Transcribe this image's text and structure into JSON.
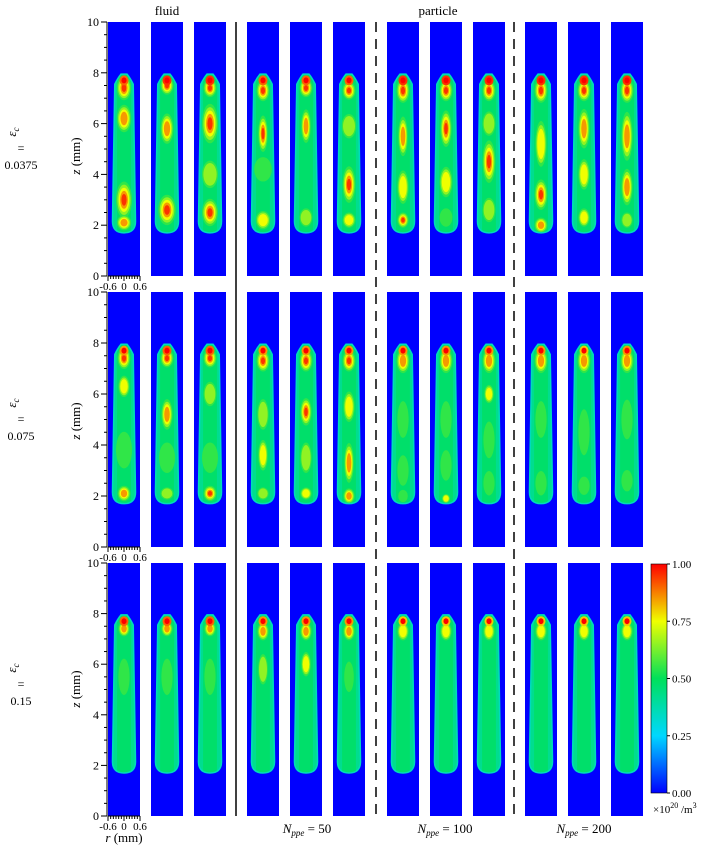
{
  "chart_data": {
    "type": "heatmap",
    "headers": {
      "fluid": "fluid",
      "particle": "particle"
    },
    "group_labels": [
      {
        "label": "N",
        "sub": "ppe",
        "value": "= 50"
      },
      {
        "label": "N",
        "sub": "ppe",
        "value": "= 100"
      },
      {
        "label": "N",
        "sub": "ppe",
        "value": "= 200"
      }
    ],
    "rows": [
      {
        "symbol": "ε",
        "sub": "c",
        "eq": "=",
        "value": "0.0375"
      },
      {
        "symbol": "ε",
        "sub": "c",
        "eq": "=",
        "value": "0.075"
      },
      {
        "symbol": "ε",
        "sub": "c",
        "eq": "=",
        "value": "0.15"
      }
    ],
    "ylabel": {
      "var": "z",
      "unit": "(mm)"
    },
    "xlabel": {
      "var": "r",
      "unit": "(mm)"
    },
    "yticks": [
      "0",
      "2",
      "4",
      "6",
      "8",
      "10"
    ],
    "xticks": [
      "-0.6",
      "0",
      "0.6"
    ],
    "ylim": [
      0,
      10
    ],
    "xlim": [
      -0.6,
      0.6
    ],
    "colorbar": {
      "ticks": [
        "1.00",
        "0.75",
        "0.50",
        "0.25",
        "0.00"
      ],
      "range": [
        0,
        1
      ],
      "unit_prefix": "×10",
      "unit_exp": "20",
      "unit_suffix": " /m",
      "unit_sup": "3"
    },
    "colors": {
      "low": "#0000ff",
      "cyan": "#00d8ff",
      "mid": "#00e05a",
      "yellow": "#f0ff00",
      "high": "#ff0000"
    },
    "panels": [
      [
        {
          "tip": 0.9,
          "peaks": [
            {
              "z": 7.4,
              "v": 1.0,
              "w": 0.45,
              "h": 0.8
            },
            {
              "z": 6.2,
              "v": 0.92,
              "w": 0.45,
              "h": 0.9
            },
            {
              "z": 4.5,
              "v": 0.52,
              "w": 0.6,
              "h": 0.9
            },
            {
              "z": 3.0,
              "v": 1.0,
              "w": 0.5,
              "h": 1.2
            },
            {
              "z": 2.1,
              "v": 0.85,
              "w": 0.45,
              "h": 0.5
            }
          ]
        },
        {
          "tip": 0.95,
          "peaks": [
            {
              "z": 7.5,
              "v": 1.0,
              "w": 0.4,
              "h": 0.6
            },
            {
              "z": 5.8,
              "v": 0.88,
              "w": 0.4,
              "h": 1.0
            },
            {
              "z": 4.2,
              "v": 0.5,
              "w": 0.55,
              "h": 0.8
            },
            {
              "z": 2.6,
              "v": 1.0,
              "w": 0.55,
              "h": 1.0
            }
          ]
        },
        {
          "tip": 0.95,
          "peaks": [
            {
              "z": 7.4,
              "v": 1.0,
              "w": 0.4,
              "h": 0.6
            },
            {
              "z": 6.0,
              "v": 0.95,
              "w": 0.5,
              "h": 1.3
            },
            {
              "z": 4.0,
              "v": 0.7,
              "w": 0.5,
              "h": 0.9
            },
            {
              "z": 2.5,
              "v": 1.0,
              "w": 0.5,
              "h": 0.9
            }
          ]
        },
        {
          "tip": 0.9,
          "peaks": [
            {
              "z": 7.3,
              "v": 1.0,
              "w": 0.4,
              "h": 0.7
            },
            {
              "z": 5.6,
              "v": 0.95,
              "w": 0.3,
              "h": 1.2
            },
            {
              "z": 4.2,
              "v": 0.55,
              "w": 0.55,
              "h": 0.8
            },
            {
              "z": 2.2,
              "v": 0.75,
              "w": 0.45,
              "h": 0.6
            }
          ]
        },
        {
          "tip": 0.9,
          "peaks": [
            {
              "z": 7.4,
              "v": 1.0,
              "w": 0.4,
              "h": 0.6
            },
            {
              "z": 5.9,
              "v": 0.9,
              "w": 0.3,
              "h": 1.1
            },
            {
              "z": 4.3,
              "v": 0.5,
              "w": 0.55,
              "h": 0.8
            },
            {
              "z": 2.3,
              "v": 0.7,
              "w": 0.4,
              "h": 0.6
            }
          ]
        },
        {
          "tip": 0.9,
          "peaks": [
            {
              "z": 7.3,
              "v": 1.0,
              "w": 0.4,
              "h": 0.6
            },
            {
              "z": 5.9,
              "v": 0.7,
              "w": 0.45,
              "h": 0.8
            },
            {
              "z": 3.6,
              "v": 0.95,
              "w": 0.4,
              "h": 1.2
            },
            {
              "z": 2.2,
              "v": 0.75,
              "w": 0.4,
              "h": 0.5
            }
          ]
        },
        {
          "tip": 0.95,
          "peaks": [
            {
              "z": 7.3,
              "v": 1.0,
              "w": 0.4,
              "h": 0.8
            },
            {
              "z": 5.5,
              "v": 0.85,
              "w": 0.3,
              "h": 1.3
            },
            {
              "z": 3.5,
              "v": 0.8,
              "w": 0.35,
              "h": 1.1
            },
            {
              "z": 2.2,
              "v": 0.95,
              "w": 0.35,
              "h": 0.5
            }
          ]
        },
        {
          "tip": 0.95,
          "peaks": [
            {
              "z": 7.3,
              "v": 1.0,
              "w": 0.4,
              "h": 0.7
            },
            {
              "z": 5.8,
              "v": 0.95,
              "w": 0.35,
              "h": 1.2
            },
            {
              "z": 3.7,
              "v": 0.75,
              "w": 0.4,
              "h": 1.0
            },
            {
              "z": 2.3,
              "v": 0.6,
              "w": 0.4,
              "h": 0.6
            }
          ]
        },
        {
          "tip": 0.95,
          "peaks": [
            {
              "z": 7.3,
              "v": 1.0,
              "w": 0.4,
              "h": 0.7
            },
            {
              "z": 6.0,
              "v": 0.7,
              "w": 0.4,
              "h": 0.8
            },
            {
              "z": 4.5,
              "v": 0.98,
              "w": 0.4,
              "h": 1.4
            },
            {
              "z": 2.6,
              "v": 0.7,
              "w": 0.4,
              "h": 0.8
            }
          ]
        },
        {
          "tip": 0.95,
          "peaks": [
            {
              "z": 7.3,
              "v": 1.0,
              "w": 0.4,
              "h": 0.8
            },
            {
              "z": 5.2,
              "v": 0.8,
              "w": 0.35,
              "h": 1.5
            },
            {
              "z": 3.2,
              "v": 0.95,
              "w": 0.4,
              "h": 1.0
            },
            {
              "z": 2.0,
              "v": 0.85,
              "w": 0.4,
              "h": 0.5
            }
          ]
        },
        {
          "tip": 0.95,
          "peaks": [
            {
              "z": 7.3,
              "v": 1.0,
              "w": 0.4,
              "h": 0.7
            },
            {
              "z": 5.8,
              "v": 0.9,
              "w": 0.35,
              "h": 1.3
            },
            {
              "z": 4.0,
              "v": 0.8,
              "w": 0.35,
              "h": 1.0
            },
            {
              "z": 2.3,
              "v": 0.75,
              "w": 0.35,
              "h": 0.6
            }
          ]
        },
        {
          "tip": 0.95,
          "peaks": [
            {
              "z": 7.3,
              "v": 1.0,
              "w": 0.4,
              "h": 0.8
            },
            {
              "z": 5.5,
              "v": 0.88,
              "w": 0.35,
              "h": 1.6
            },
            {
              "z": 3.5,
              "v": 0.85,
              "w": 0.35,
              "h": 1.2
            },
            {
              "z": 2.2,
              "v": 0.65,
              "w": 0.35,
              "h": 0.5
            }
          ]
        }
      ],
      [
        {
          "tip": 0.85,
          "peaks": [
            {
              "z": 7.4,
              "v": 0.95,
              "w": 0.4,
              "h": 0.7
            },
            {
              "z": 6.3,
              "v": 0.75,
              "w": 0.35,
              "h": 0.7
            },
            {
              "z": 3.8,
              "v": 0.55,
              "w": 0.5,
              "h": 1.2
            },
            {
              "z": 2.1,
              "v": 0.9,
              "w": 0.4,
              "h": 0.5
            }
          ]
        },
        {
          "tip": 0.9,
          "peaks": [
            {
              "z": 7.4,
              "v": 1.0,
              "w": 0.4,
              "h": 0.6
            },
            {
              "z": 5.2,
              "v": 0.85,
              "w": 0.35,
              "h": 1.0
            },
            {
              "z": 3.5,
              "v": 0.55,
              "w": 0.5,
              "h": 1.0
            },
            {
              "z": 2.1,
              "v": 0.7,
              "w": 0.4,
              "h": 0.4
            }
          ]
        },
        {
          "tip": 0.9,
          "peaks": [
            {
              "z": 7.4,
              "v": 1.0,
              "w": 0.4,
              "h": 0.6
            },
            {
              "z": 6.0,
              "v": 0.7,
              "w": 0.4,
              "h": 0.8
            },
            {
              "z": 3.5,
              "v": 0.55,
              "w": 0.5,
              "h": 1.0
            },
            {
              "z": 2.1,
              "v": 0.95,
              "w": 0.4,
              "h": 0.5
            }
          ]
        },
        {
          "tip": 0.85,
          "peaks": [
            {
              "z": 7.3,
              "v": 0.95,
              "w": 0.4,
              "h": 0.7
            },
            {
              "z": 5.2,
              "v": 0.7,
              "w": 0.35,
              "h": 1.0
            },
            {
              "z": 3.6,
              "v": 0.75,
              "w": 0.3,
              "h": 1.0
            },
            {
              "z": 2.1,
              "v": 0.7,
              "w": 0.35,
              "h": 0.4
            }
          ]
        },
        {
          "tip": 0.85,
          "peaks": [
            {
              "z": 7.3,
              "v": 1.0,
              "w": 0.4,
              "h": 0.7
            },
            {
              "z": 5.3,
              "v": 0.95,
              "w": 0.35,
              "h": 0.9
            },
            {
              "z": 3.5,
              "v": 0.7,
              "w": 0.35,
              "h": 1.0
            },
            {
              "z": 2.1,
              "v": 0.75,
              "w": 0.35,
              "h": 0.4
            }
          ]
        },
        {
          "tip": 0.85,
          "peaks": [
            {
              "z": 7.3,
              "v": 1.0,
              "w": 0.4,
              "h": 0.7
            },
            {
              "z": 5.5,
              "v": 0.8,
              "w": 0.35,
              "h": 1.0
            },
            {
              "z": 3.3,
              "v": 0.9,
              "w": 0.3,
              "h": 1.3
            },
            {
              "z": 2.0,
              "v": 0.9,
              "w": 0.35,
              "h": 0.5
            }
          ]
        },
        {
          "tip": 0.85,
          "peaks": [
            {
              "z": 7.3,
              "v": 0.9,
              "w": 0.4,
              "h": 0.8
            },
            {
              "z": 5.0,
              "v": 0.6,
              "w": 0.35,
              "h": 1.2
            },
            {
              "z": 3.0,
              "v": 0.6,
              "w": 0.35,
              "h": 1.0
            },
            {
              "z": 2.0,
              "v": 0.55,
              "w": 0.3,
              "h": 0.4
            }
          ]
        },
        {
          "tip": 0.85,
          "peaks": [
            {
              "z": 7.3,
              "v": 0.9,
              "w": 0.4,
              "h": 0.8
            },
            {
              "z": 5.0,
              "v": 0.6,
              "w": 0.35,
              "h": 1.2
            },
            {
              "z": 3.2,
              "v": 0.55,
              "w": 0.35,
              "h": 1.0
            },
            {
              "z": 1.9,
              "v": 0.75,
              "w": 0.25,
              "h": 0.3
            }
          ]
        },
        {
          "tip": 0.85,
          "peaks": [
            {
              "z": 7.3,
              "v": 0.9,
              "w": 0.4,
              "h": 0.8
            },
            {
              "z": 6.0,
              "v": 0.75,
              "w": 0.3,
              "h": 0.6
            },
            {
              "z": 4.2,
              "v": 0.6,
              "w": 0.35,
              "h": 1.2
            },
            {
              "z": 2.5,
              "v": 0.6,
              "w": 0.35,
              "h": 0.8
            }
          ]
        },
        {
          "tip": 0.85,
          "peaks": [
            {
              "z": 7.3,
              "v": 0.9,
              "w": 0.4,
              "h": 0.8
            },
            {
              "z": 5.0,
              "v": 0.55,
              "w": 0.35,
              "h": 1.2
            },
            {
              "z": 2.5,
              "v": 0.55,
              "w": 0.35,
              "h": 0.8
            }
          ]
        },
        {
          "tip": 0.8,
          "peaks": [
            {
              "z": 7.3,
              "v": 0.85,
              "w": 0.4,
              "h": 0.8
            },
            {
              "z": 4.5,
              "v": 0.55,
              "w": 0.35,
              "h": 1.5
            },
            {
              "z": 2.4,
              "v": 0.55,
              "w": 0.35,
              "h": 0.6
            }
          ]
        },
        {
          "tip": 0.85,
          "peaks": [
            {
              "z": 7.3,
              "v": 0.9,
              "w": 0.4,
              "h": 0.8
            },
            {
              "z": 5.0,
              "v": 0.6,
              "w": 0.35,
              "h": 1.3
            },
            {
              "z": 2.6,
              "v": 0.55,
              "w": 0.35,
              "h": 0.7
            }
          ]
        }
      ],
      [
        {
          "tip": 0.9,
          "peaks": [
            {
              "z": 7.4,
              "v": 0.85,
              "w": 0.35,
              "h": 0.5
            },
            {
              "z": 5.5,
              "v": 0.62,
              "w": 0.35,
              "h": 1.2
            }
          ]
        },
        {
          "tip": 0.9,
          "peaks": [
            {
              "z": 7.4,
              "v": 0.85,
              "w": 0.35,
              "h": 0.5
            },
            {
              "z": 5.5,
              "v": 0.6,
              "w": 0.35,
              "h": 1.2
            }
          ]
        },
        {
          "tip": 0.9,
          "peaks": [
            {
              "z": 7.4,
              "v": 0.85,
              "w": 0.35,
              "h": 0.5
            },
            {
              "z": 5.5,
              "v": 0.6,
              "w": 0.35,
              "h": 1.2
            }
          ]
        },
        {
          "tip": 0.85,
          "peaks": [
            {
              "z": 7.3,
              "v": 0.85,
              "w": 0.35,
              "h": 0.6
            },
            {
              "z": 5.8,
              "v": 0.65,
              "w": 0.3,
              "h": 1.0
            }
          ]
        },
        {
          "tip": 0.85,
          "peaks": [
            {
              "z": 7.3,
              "v": 0.85,
              "w": 0.35,
              "h": 0.6
            },
            {
              "z": 6.0,
              "v": 0.82,
              "w": 0.3,
              "h": 0.8
            }
          ]
        },
        {
          "tip": 0.85,
          "peaks": [
            {
              "z": 7.3,
              "v": 0.85,
              "w": 0.35,
              "h": 0.6
            },
            {
              "z": 5.5,
              "v": 0.6,
              "w": 0.3,
              "h": 1.0
            }
          ]
        },
        {
          "tip": 0.8,
          "peaks": [
            {
              "z": 7.3,
              "v": 0.8,
              "w": 0.35,
              "h": 0.6
            }
          ]
        },
        {
          "tip": 0.8,
          "peaks": [
            {
              "z": 7.3,
              "v": 0.8,
              "w": 0.35,
              "h": 0.6
            }
          ]
        },
        {
          "tip": 0.8,
          "peaks": [
            {
              "z": 7.3,
              "v": 0.8,
              "w": 0.35,
              "h": 0.6
            }
          ]
        },
        {
          "tip": 0.8,
          "peaks": [
            {
              "z": 7.3,
              "v": 0.8,
              "w": 0.35,
              "h": 0.6
            }
          ]
        },
        {
          "tip": 0.8,
          "peaks": [
            {
              "z": 7.3,
              "v": 0.8,
              "w": 0.35,
              "h": 0.6
            }
          ]
        },
        {
          "tip": 0.8,
          "peaks": [
            {
              "z": 7.3,
              "v": 0.8,
              "w": 0.35,
              "h": 0.6
            }
          ]
        }
      ]
    ]
  }
}
